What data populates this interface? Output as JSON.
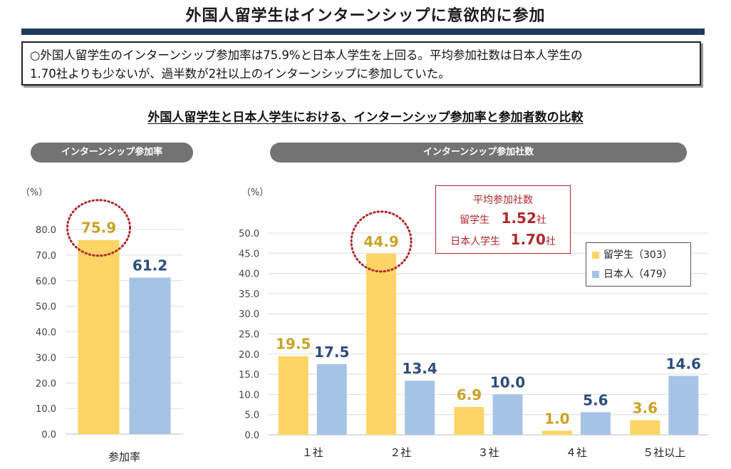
{
  "page": {
    "title": "外国人留学生はインターンシップに意欲的に参加",
    "summary_line1": "○外国人留学生のインターンシップ参加率は75.9%と日本人学生を上回る。平均参加社数は日本人学生の",
    "summary_line2": "1.70社よりも少ないが、過半数が2社以上のインターンシップに参加していた。",
    "section_title": "外国人留学生と日本人学生における、インターンシップ参加率と参加者数の比較"
  },
  "avg_box": {
    "heading": "平均参加社数",
    "intl_label": "留学生",
    "intl_value": "1.52",
    "jp_label": "日本人学生",
    "jp_value": "1.70",
    "unit": "社"
  },
  "legend": {
    "intl": "留学生（303）",
    "jp": "日本人（479）"
  },
  "colors": {
    "intl": "#fdd465",
    "jp": "#a5c3e5",
    "intl_label": "#c9a227",
    "jp_label": "#2e4c7e",
    "highlight": "#b0282e"
  },
  "chart_data": [
    {
      "type": "bar",
      "title": "インターンシップ参加率",
      "ylabel": "（%）",
      "ylim": [
        0,
        80
      ],
      "yticks": [
        "0.0",
        "10.0",
        "20.0",
        "30.0",
        "40.0",
        "50.0",
        "60.0",
        "70.0",
        "80.0"
      ],
      "categories": [
        "参加率"
      ],
      "series": [
        {
          "name": "留学生",
          "values": [
            75.9
          ],
          "labels": [
            "75.9"
          ]
        },
        {
          "name": "日本人",
          "values": [
            61.2
          ],
          "labels": [
            "61.2"
          ]
        }
      ],
      "highlight": "75.9"
    },
    {
      "type": "bar",
      "title": "インターンシップ参加社数",
      "ylabel": "（%）",
      "ylim": [
        0,
        50
      ],
      "yticks": [
        "0.0",
        "5.0",
        "10.0",
        "15.0",
        "20.0",
        "25.0",
        "30.0",
        "35.0",
        "40.0",
        "45.0",
        "50.0"
      ],
      "categories": [
        "１社",
        "２社",
        "３社",
        "４社",
        "５社以上"
      ],
      "series": [
        {
          "name": "留学生（303）",
          "values": [
            19.5,
            44.9,
            6.9,
            1.0,
            3.6
          ],
          "labels": [
            "19.5",
            "44.9",
            "6.9",
            "1.0",
            "3.6"
          ]
        },
        {
          "name": "日本人（479）",
          "values": [
            17.5,
            13.4,
            10.0,
            5.6,
            14.6
          ],
          "labels": [
            "17.5",
            "13.4",
            "10.0",
            "5.6",
            "14.6"
          ]
        }
      ],
      "highlight": "44.9"
    }
  ]
}
